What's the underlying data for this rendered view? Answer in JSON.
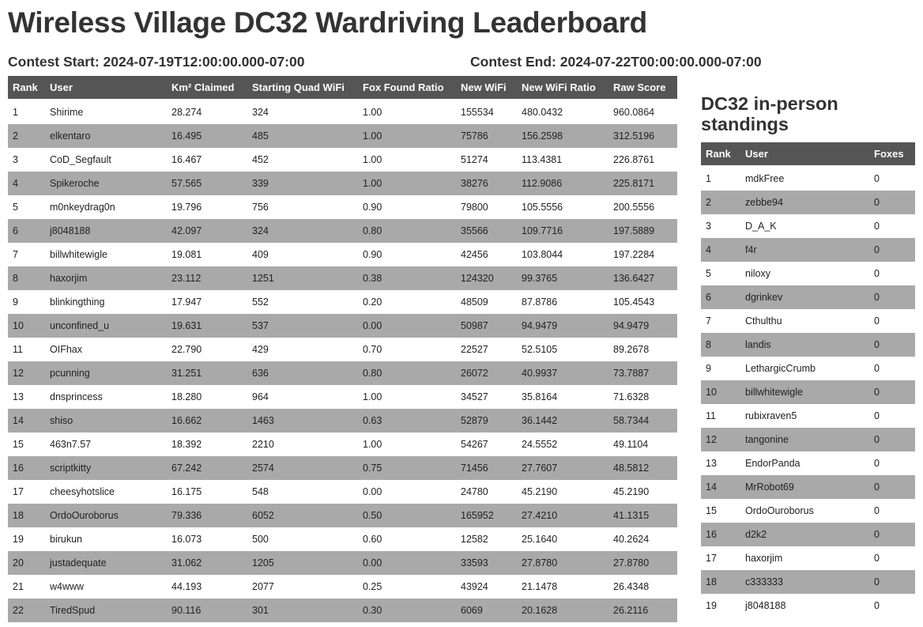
{
  "title": "Wireless Village DC32 Wardriving Leaderboard",
  "contest_start": "Contest Start: 2024-07-19T12:00:00.000-07:00",
  "contest_end": "Contest End: 2024-07-22T00:00:00.000-07:00",
  "leaderboard": {
    "columns": [
      "Rank",
      "User",
      "Km² Claimed",
      "Starting Quad WiFi",
      "Fox Found Ratio",
      "New WiFi",
      "New WiFi Ratio",
      "Raw Score"
    ],
    "rows": [
      [
        "1",
        "Shirime",
        "28.274",
        "324",
        "1.00",
        "155534",
        "480.0432",
        "960.0864"
      ],
      [
        "2",
        "elkentaro",
        "16.495",
        "485",
        "1.00",
        "75786",
        "156.2598",
        "312.5196"
      ],
      [
        "3",
        "CoD_Segfault",
        "16.467",
        "452",
        "1.00",
        "51274",
        "113.4381",
        "226.8761"
      ],
      [
        "4",
        "Spikeroche",
        "57.565",
        "339",
        "1.00",
        "38276",
        "112.9086",
        "225.8171"
      ],
      [
        "5",
        "m0nkeydrag0n",
        "19.796",
        "756",
        "0.90",
        "79800",
        "105.5556",
        "200.5556"
      ],
      [
        "6",
        "j8048188",
        "42.097",
        "324",
        "0.80",
        "35566",
        "109.7716",
        "197.5889"
      ],
      [
        "7",
        "billwhitewigle",
        "19.081",
        "409",
        "0.90",
        "42456",
        "103.8044",
        "197.2284"
      ],
      [
        "8",
        "haxorjim",
        "23.112",
        "1251",
        "0.38",
        "124320",
        "99.3765",
        "136.6427"
      ],
      [
        "9",
        "blinkingthing",
        "17.947",
        "552",
        "0.20",
        "48509",
        "87.8786",
        "105.4543"
      ],
      [
        "10",
        "unconfined_u",
        "19.631",
        "537",
        "0.00",
        "50987",
        "94.9479",
        "94.9479"
      ],
      [
        "11",
        "OIFhax",
        "22.790",
        "429",
        "0.70",
        "22527",
        "52.5105",
        "89.2678"
      ],
      [
        "12",
        "pcunning",
        "31.251",
        "636",
        "0.80",
        "26072",
        "40.9937",
        "73.7887"
      ],
      [
        "13",
        "dnsprincess",
        "18.280",
        "964",
        "1.00",
        "34527",
        "35.8164",
        "71.6328"
      ],
      [
        "14",
        "shiso",
        "16.662",
        "1463",
        "0.63",
        "52879",
        "36.1442",
        "58.7344"
      ],
      [
        "15",
        "463n7.57",
        "18.392",
        "2210",
        "1.00",
        "54267",
        "24.5552",
        "49.1104"
      ],
      [
        "16",
        "scriptkitty",
        "67.242",
        "2574",
        "0.75",
        "71456",
        "27.7607",
        "48.5812"
      ],
      [
        "17",
        "cheesyhotslice",
        "16.175",
        "548",
        "0.00",
        "24780",
        "45.2190",
        "45.2190"
      ],
      [
        "18",
        "OrdoOuroborus",
        "79.336",
        "6052",
        "0.50",
        "165952",
        "27.4210",
        "41.1315"
      ],
      [
        "19",
        "birukun",
        "16.073",
        "500",
        "0.60",
        "12582",
        "25.1640",
        "40.2624"
      ],
      [
        "20",
        "justadequate",
        "31.062",
        "1205",
        "0.00",
        "33593",
        "27.8780",
        "27.8780"
      ],
      [
        "21",
        "w4www",
        "44.193",
        "2077",
        "0.25",
        "43924",
        "21.1478",
        "26.4348"
      ],
      [
        "22",
        "TiredSpud",
        "90.116",
        "301",
        "0.30",
        "6069",
        "20.1628",
        "26.2116"
      ]
    ]
  },
  "standings": {
    "heading": "DC32 in-person standings",
    "columns": [
      "Rank",
      "User",
      "Foxes"
    ],
    "rows": [
      [
        "1",
        "mdkFree",
        "0"
      ],
      [
        "2",
        "zebbe94",
        "0"
      ],
      [
        "3",
        "D_A_K",
        "0"
      ],
      [
        "4",
        "f4r",
        "0"
      ],
      [
        "5",
        "niloxy",
        "0"
      ],
      [
        "6",
        "dgrinkev",
        "0"
      ],
      [
        "7",
        "Cthulthu",
        "0"
      ],
      [
        "8",
        "landis",
        "0"
      ],
      [
        "9",
        "LethargicCrumb",
        "0"
      ],
      [
        "10",
        "billwhitewigle",
        "0"
      ],
      [
        "11",
        "rubixraven5",
        "0"
      ],
      [
        "12",
        "tangonine",
        "0"
      ],
      [
        "13",
        "EndorPanda",
        "0"
      ],
      [
        "14",
        "MrRobot69",
        "0"
      ],
      [
        "15",
        "OrdoOuroborus",
        "0"
      ],
      [
        "16",
        "d2k2",
        "0"
      ],
      [
        "17",
        "haxorjim",
        "0"
      ],
      [
        "18",
        "c333333",
        "0"
      ],
      [
        "19",
        "j8048188",
        "0"
      ]
    ]
  }
}
